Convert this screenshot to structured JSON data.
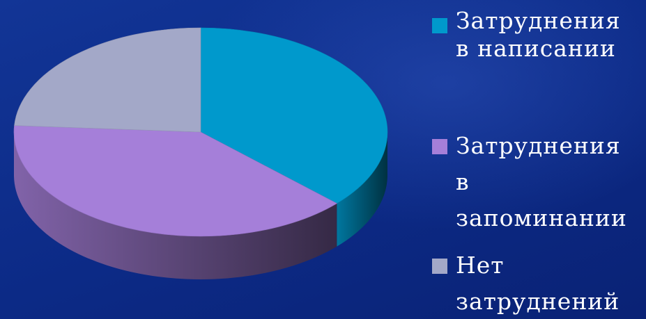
{
  "chart_data": {
    "type": "pie",
    "title": "",
    "slices": [
      {
        "label": "Затруднения\nв написании",
        "value": 37,
        "color": "#0099cc"
      },
      {
        "label": "Затруднения\nв\nзапоминании",
        "value": 39,
        "color": "#a57fd9"
      },
      {
        "label": "Нет\nзатруднений",
        "value": 24,
        "color": "#a3a8c8"
      }
    ],
    "legend_position": "right",
    "style": "3d"
  }
}
